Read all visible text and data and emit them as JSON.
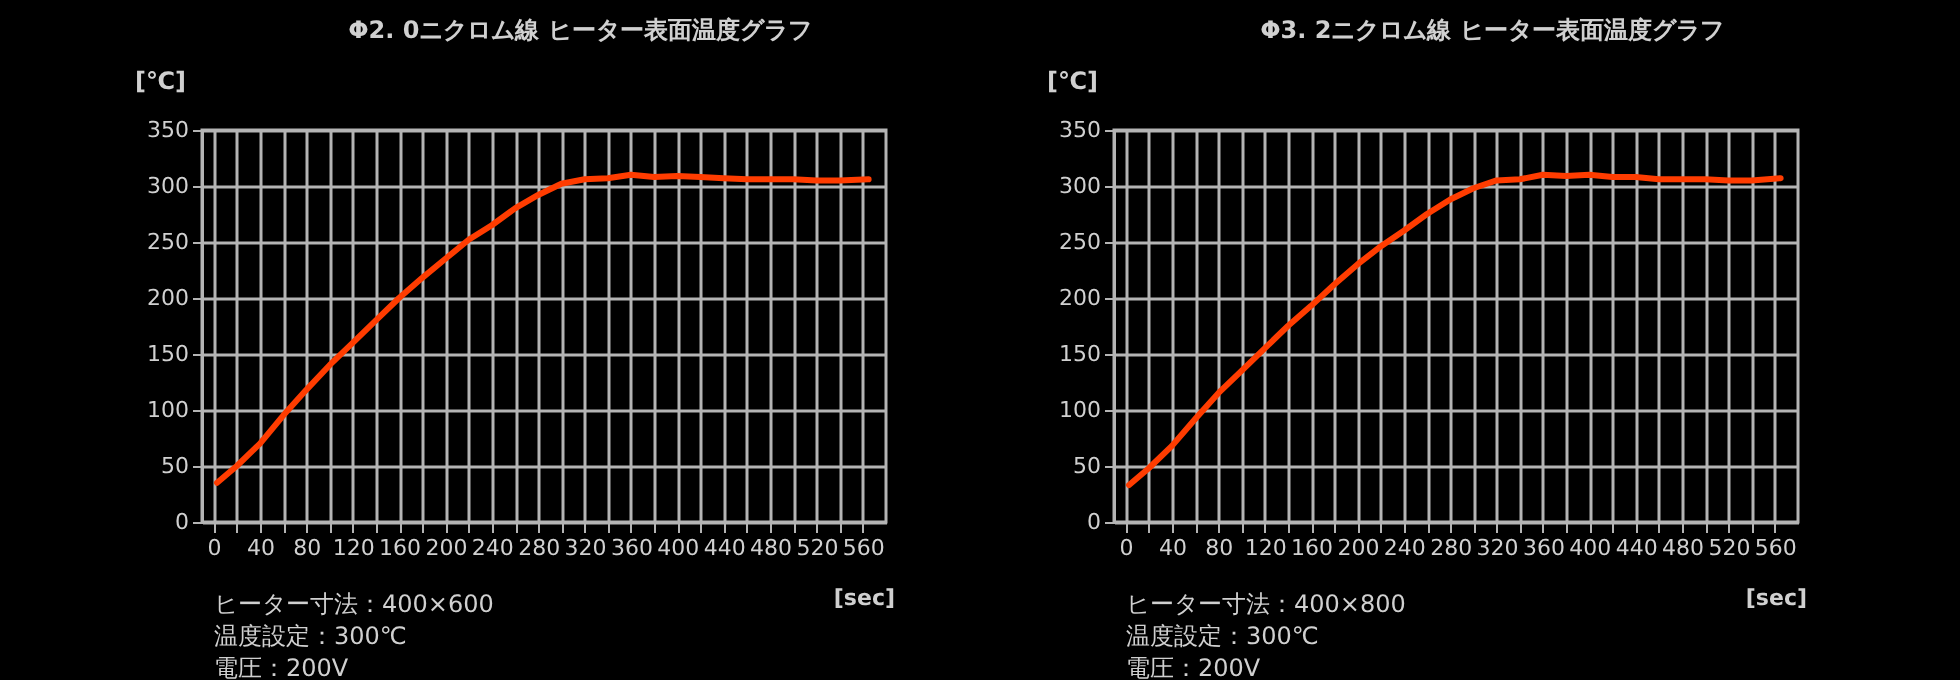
{
  "chart_data": [
    {
      "type": "line",
      "title": "Φ2. 0ニクロム線 ヒーター表面温度グラフ",
      "xlabel": "[sec]",
      "ylabel": "[℃]",
      "x": [
        3,
        20,
        40,
        60,
        80,
        100,
        120,
        140,
        160,
        180,
        200,
        220,
        240,
        260,
        280,
        300,
        320,
        340,
        360,
        380,
        400,
        420,
        440,
        460,
        480,
        500,
        520,
        540,
        565
      ],
      "series": [
        {
          "color": "#ff3c00",
          "values": [
            35,
            50,
            70,
            95,
            118,
            140,
            160,
            180,
            200,
            218,
            235,
            252,
            265,
            280,
            292,
            302,
            306,
            307,
            310,
            308,
            309,
            308,
            307,
            306,
            306,
            306,
            305,
            305,
            306
          ]
        }
      ],
      "xlim": [
        -10,
        580
      ],
      "xticks": [
        0,
        {
          "value": 20,
          "label": null
        },
        40,
        {
          "value": 60,
          "label": null
        },
        80,
        {
          "value": 100,
          "label": null
        },
        120,
        {
          "value": 140,
          "label": null
        },
        160,
        {
          "value": 180,
          "label": null
        },
        200,
        {
          "value": 220,
          "label": null
        },
        240,
        {
          "value": 260,
          "label": null
        },
        280,
        {
          "value": 300,
          "label": null
        },
        320,
        {
          "value": 340,
          "label": null
        },
        360,
        {
          "value": 380,
          "label": null
        },
        400,
        {
          "value": 420,
          "label": null
        },
        440,
        {
          "value": 460,
          "label": null
        },
        480,
        {
          "value": 500,
          "label": null
        },
        520,
        {
          "value": 540,
          "label": null
        },
        560
      ],
      "ylim": [
        0,
        350
      ],
      "yticks": [
        0,
        50,
        100,
        150,
        200,
        250,
        300,
        350
      ],
      "grid": true,
      "legend": false,
      "annotations": [
        "ヒーター寸法：400×600",
        "温度設定：300℃",
        "電圧：200V"
      ]
    },
    {
      "type": "line",
      "title": "Φ3. 2ニクロム線 ヒーター表面温度グラフ",
      "xlabel": "[sec]",
      "ylabel": "[℃]",
      "x": [
        3,
        20,
        40,
        60,
        80,
        100,
        120,
        140,
        160,
        180,
        200,
        220,
        240,
        260,
        280,
        300,
        320,
        340,
        360,
        380,
        400,
        420,
        440,
        460,
        480,
        500,
        520,
        540,
        565
      ],
      "series": [
        {
          "color": "#ff3c00",
          "values": [
            33,
            48,
            68,
            92,
            115,
            135,
            155,
            175,
            193,
            212,
            230,
            246,
            260,
            275,
            288,
            298,
            305,
            306,
            310,
            309,
            310,
            308,
            308,
            306,
            306,
            306,
            305,
            305,
            307
          ]
        }
      ],
      "xlim": [
        -10,
        580
      ],
      "xticks": [
        0,
        {
          "value": 20,
          "label": null
        },
        40,
        {
          "value": 60,
          "label": null
        },
        80,
        {
          "value": 100,
          "label": null
        },
        120,
        {
          "value": 140,
          "label": null
        },
        160,
        {
          "value": 180,
          "label": null
        },
        200,
        {
          "value": 220,
          "label": null
        },
        240,
        {
          "value": 260,
          "label": null
        },
        280,
        {
          "value": 300,
          "label": null
        },
        320,
        {
          "value": 340,
          "label": null
        },
        360,
        {
          "value": 380,
          "label": null
        },
        400,
        {
          "value": 420,
          "label": null
        },
        440,
        {
          "value": 460,
          "label": null
        },
        480,
        {
          "value": 500,
          "label": null
        },
        520,
        {
          "value": 540,
          "label": null
        },
        560
      ],
      "ylim": [
        0,
        350
      ],
      "yticks": [
        0,
        50,
        100,
        150,
        200,
        250,
        300,
        350
      ],
      "grid": true,
      "legend": false,
      "annotations": [
        "ヒーター寸法：400×800",
        "温度設定：300℃",
        "電圧：200V"
      ]
    }
  ]
}
